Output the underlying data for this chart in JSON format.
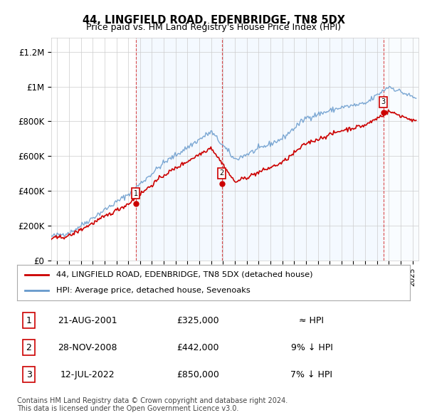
{
  "title": "44, LINGFIELD ROAD, EDENBRIDGE, TN8 5DX",
  "subtitle": "Price paid vs. HM Land Registry's House Price Index (HPI)",
  "ylabel_ticks": [
    "£0",
    "£200K",
    "£400K",
    "£600K",
    "£800K",
    "£1M",
    "£1.2M"
  ],
  "ytick_values": [
    0,
    200000,
    400000,
    600000,
    800000,
    1000000,
    1200000
  ],
  "ylim": [
    0,
    1280000
  ],
  "xlim_start": 1994.5,
  "xlim_end": 2025.5,
  "legend_line1": "44, LINGFIELD ROAD, EDENBRIDGE, TN8 5DX (detached house)",
  "legend_line2": "HPI: Average price, detached house, Sevenoaks",
  "line1_color": "#cc0000",
  "line2_color": "#6699cc",
  "purchases": [
    {
      "num": 1,
      "date": "21-AUG-2001",
      "year": 2001.64,
      "price": 325000,
      "label": "≈ HPI"
    },
    {
      "num": 2,
      "date": "28-NOV-2008",
      "year": 2008.91,
      "price": 442000,
      "label": "9% ↓ HPI"
    },
    {
      "num": 3,
      "date": "12-JUL-2022",
      "year": 2022.53,
      "price": 850000,
      "label": "7% ↓ HPI"
    }
  ],
  "footnote1": "Contains HM Land Registry data © Crown copyright and database right 2024.",
  "footnote2": "This data is licensed under the Open Government Licence v3.0.",
  "background_color": "#ffffff",
  "plot_bg_color": "#ffffff",
  "grid_color": "#cccccc",
  "shade_color": "#ddeeff"
}
